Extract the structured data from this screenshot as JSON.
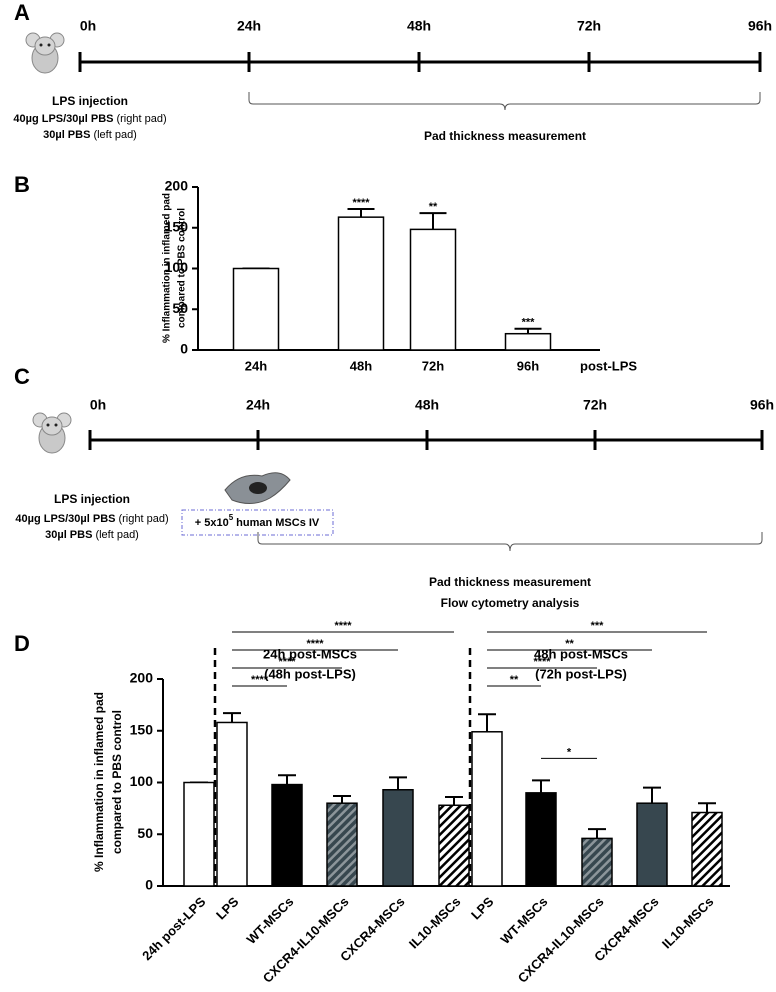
{
  "panel_a": {
    "letter": "A",
    "timepoints": [
      "0h",
      "24h",
      "48h",
      "72h",
      "96h"
    ],
    "event_title": "LPS injection",
    "event_lines": [
      {
        "bold": "40µg LPS/30µl PBS",
        "normal": "(right pad)"
      },
      {
        "bold": "30µl PBS",
        "normal": "(left pad)"
      }
    ],
    "bracket_labels": [
      "Pad thickness measurement"
    ]
  },
  "panel_c": {
    "letter": "C",
    "timepoints": [
      "0h",
      "24h",
      "48h",
      "72h",
      "96h"
    ],
    "event_title": "LPS injection",
    "event_lines": [
      {
        "bold": "40µg LPS/30µl PBS",
        "normal": "(right pad)"
      },
      {
        "bold": "30µl PBS",
        "normal": "(left pad)"
      }
    ],
    "treatment": {
      "text": "+ 5x10",
      "sup": "5",
      "rest": "human MSCs IV"
    },
    "bracket_labels": [
      "Pad thickness measurement",
      "Flow cytometry analysis"
    ]
  },
  "chart_data": [
    {
      "panel_label": "B",
      "type": "bar",
      "y_label": [
        "% Inflammation in inflamed pad",
        "compared to PBS control"
      ],
      "x_label": "post-LPS",
      "categories": [
        "24h",
        "48h",
        "72h",
        "96h"
      ],
      "values": [
        100,
        163,
        148,
        20
      ],
      "errors": [
        0,
        10,
        20,
        6
      ],
      "significance": [
        null,
        "****",
        "**",
        "***"
      ],
      "color": "#ffffff",
      "ylim": [
        0,
        200
      ],
      "yticks": [
        0,
        50,
        100,
        150,
        200
      ]
    },
    {
      "panel_label": "D",
      "type": "bar",
      "y_label": [
        "% Inflammation in inflamed pad",
        "compared to PBS control"
      ],
      "group_titles": [
        [
          "24h post-MSCs",
          "(48h post-LPS)"
        ],
        [
          "48h post-MSCs",
          "(72h post-LPS)"
        ]
      ],
      "categories": [
        "24h post-LPS",
        "LPS",
        "WT-MSCs",
        "CXCR4-IL10-MSCs",
        "CXCR4-MSCs",
        "IL10-MSCs",
        "LPS",
        "WT-MSCs",
        "CXCR4-IL10-MSCs",
        "CXCR4-MSCs",
        "IL10-MSCs"
      ],
      "values": [
        100,
        158,
        98,
        80,
        93,
        78,
        149,
        90,
        46,
        80,
        71
      ],
      "errors": [
        0,
        9,
        9,
        7,
        12,
        8,
        17,
        12,
        9,
        15,
        9
      ],
      "colors": [
        "#ffffff",
        "#ffffff",
        "#000000",
        "#37474f",
        "#37474f",
        "#ffffff",
        "#ffffff",
        "#000000",
        "#37474f",
        "#37474f",
        "#ffffff"
      ],
      "hatched": [
        false,
        false,
        false,
        true,
        false,
        true,
        false,
        false,
        true,
        false,
        true
      ],
      "comparisons": [
        {
          "label": "****",
          "from": 1,
          "to": 2
        },
        {
          "label": "****",
          "from": 1,
          "to": 3
        },
        {
          "label": "****",
          "from": 1,
          "to": 4
        },
        {
          "label": "****",
          "from": 1,
          "to": 5
        },
        {
          "label": "**",
          "from": 6,
          "to": 7
        },
        {
          "label": "****",
          "from": 6,
          "to": 8
        },
        {
          "label": "**",
          "from": 6,
          "to": 9
        },
        {
          "label": "***",
          "from": 6,
          "to": 10
        },
        {
          "label": "*",
          "from": 7,
          "to": 8
        }
      ],
      "ylim": [
        0,
        200
      ],
      "yticks": [
        0,
        50,
        100,
        150,
        200
      ]
    }
  ]
}
